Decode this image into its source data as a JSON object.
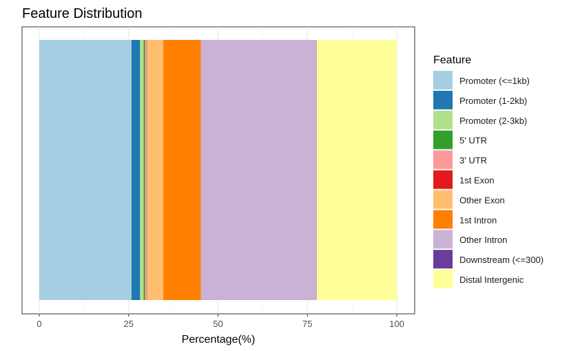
{
  "chart_data": {
    "type": "bar",
    "orientation": "horizontal",
    "stacked": true,
    "title": "Feature Distribution",
    "xlabel": "Percentage(%)",
    "ylabel": "",
    "xlim": [
      0,
      100
    ],
    "x_ticks": [
      0,
      25,
      50,
      75,
      100
    ],
    "x_tick_labels": [
      "0",
      "25",
      "50",
      "75",
      "100"
    ],
    "grid": true,
    "legend_position": "right",
    "legend_title": "Feature",
    "series": [
      {
        "name": "Promoter (<=1kb)",
        "value": 25.8,
        "color": "#A6CEE3"
      },
      {
        "name": "Promoter (1-2kb)",
        "value": 2.4,
        "color": "#1F78B4"
      },
      {
        "name": "Promoter (2-3kb)",
        "value": 1.0,
        "color": "#B2DF8A"
      },
      {
        "name": "5' UTR",
        "value": 0.4,
        "color": "#33A02C"
      },
      {
        "name": "3' UTR",
        "value": 0.5,
        "color": "#FB9A99"
      },
      {
        "name": "1st Exon",
        "value": 0.1,
        "color": "#E31A1C"
      },
      {
        "name": "Other Exon",
        "value": 4.5,
        "color": "#FDBF6F"
      },
      {
        "name": "1st Intron",
        "value": 10.5,
        "color": "#FF7F00"
      },
      {
        "name": "Other Intron",
        "value": 32.3,
        "color": "#CAB2D6"
      },
      {
        "name": "Downstream (<=300)",
        "value": 0.1,
        "color": "#6A3D9A"
      },
      {
        "name": "Distal Intergenic",
        "value": 22.4,
        "color": "#FFFF99"
      }
    ]
  }
}
